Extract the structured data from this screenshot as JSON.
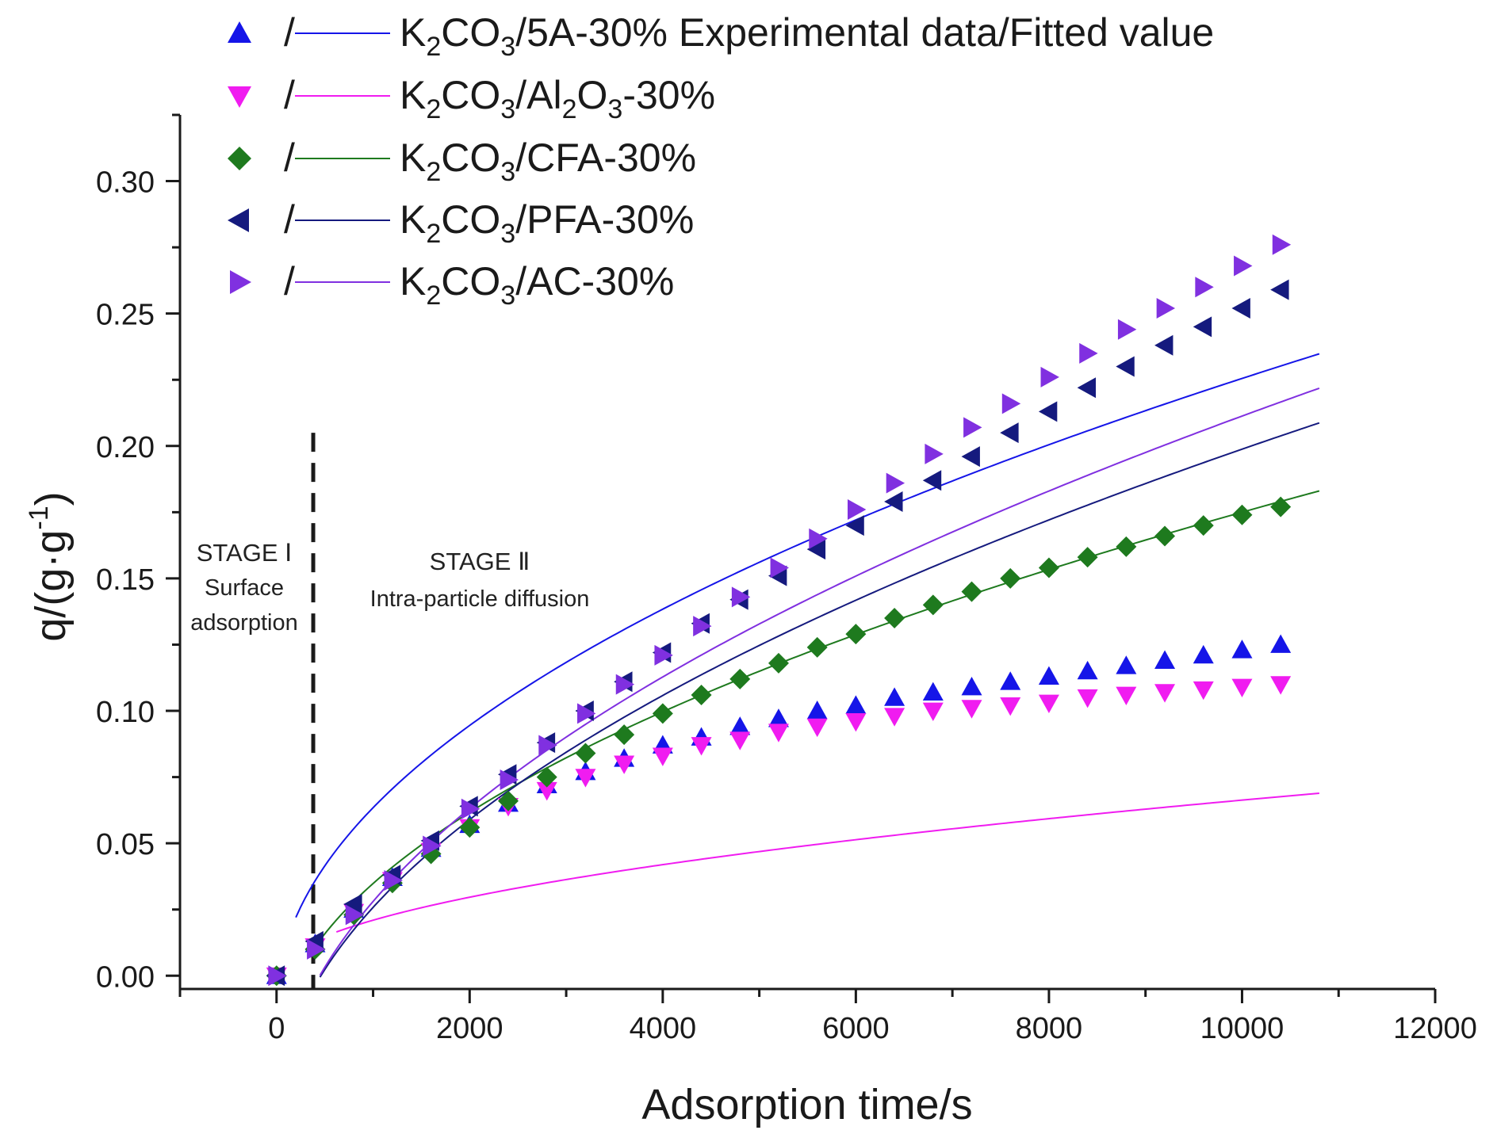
{
  "chart_data": {
    "type": "scatter",
    "title": "",
    "xlabel": "Adsorption time/s",
    "ylabel": {
      "base": "q/(g·g",
      "sup": "-1",
      "tail": ")"
    },
    "xlim": [
      -1000,
      12000
    ],
    "ylim": [
      -0.005,
      0.325
    ],
    "xticks": [
      0,
      2000,
      4000,
      6000,
      8000,
      10000,
      12000
    ],
    "xtick_labels": [
      "0",
      "2000",
      "4000",
      "6000",
      "8000",
      "10000",
      "12000"
    ],
    "yticks": [
      0.0,
      0.05,
      0.1,
      0.15,
      0.2,
      0.25,
      0.3
    ],
    "ytick_labels": [
      "0.00",
      "0.05",
      "0.10",
      "0.15",
      "0.20",
      "0.25",
      "0.30"
    ],
    "grid": false,
    "legend_position": "top-left",
    "legend_separator": "/",
    "stage_boundary_x": 380,
    "stage1": {
      "title": "STAGE Ⅰ",
      "line1": "Surface",
      "line2": "adsorption"
    },
    "stage2": {
      "title": "STAGE Ⅱ",
      "line1": "Intra-particle diffusion"
    },
    "x": [
      0,
      400,
      800,
      1200,
      1600,
      2000,
      2400,
      2800,
      3200,
      3600,
      4000,
      4400,
      4800,
      5200,
      5600,
      6000,
      6400,
      6800,
      7200,
      7600,
      8000,
      8400,
      8800,
      9200,
      9600,
      10000,
      10400
    ],
    "series": [
      {
        "label": {
          "k": "K",
          "k_sub": "2",
          "co": "CO",
          "co_sub": "3",
          "rest": "/5A-30% Experimental data/Fitted value"
        },
        "marker": "triangle-up",
        "color": "#1515e8",
        "values": [
          0,
          0.012,
          0.025,
          0.037,
          0.048,
          0.057,
          0.065,
          0.072,
          0.077,
          0.082,
          0.087,
          0.09,
          0.094,
          0.097,
          0.1,
          0.102,
          0.105,
          0.107,
          0.109,
          0.111,
          0.113,
          0.115,
          0.117,
          0.119,
          0.121,
          0.123,
          0.125
        ],
        "fit": {
          "x0": 200,
          "a": 0.00237,
          "b": -0.0115,
          "end": 10800
        }
      },
      {
        "label": {
          "k": "K",
          "k_sub": "2",
          "co": "CO",
          "co_sub": "3",
          "al_slash": "/Al",
          "al_sub": "2",
          "o": "O",
          "o_sub": "3",
          "rest": "-30%"
        },
        "marker": "triangle-down",
        "color": "#f01cf0",
        "values": [
          0,
          0.011,
          0.024,
          0.036,
          0.047,
          0.056,
          0.064,
          0.07,
          0.075,
          0.08,
          0.083,
          0.087,
          0.089,
          0.092,
          0.094,
          0.096,
          0.098,
          0.1,
          0.101,
          0.102,
          0.103,
          0.105,
          0.106,
          0.107,
          0.108,
          0.109,
          0.11
        ],
        "fit": {
          "x0": 620,
          "a": 0.000663,
          "b": 0.0,
          "end": 10800
        }
      },
      {
        "label": {
          "k": "K",
          "k_sub": "2",
          "co": "CO",
          "co_sub": "3",
          "rest": "/CFA-30%"
        },
        "marker": "diamond",
        "color": "#1e7a1e",
        "values": [
          0,
          0.01,
          0.023,
          0.035,
          0.046,
          0.056,
          0.066,
          0.075,
          0.084,
          0.091,
          0.099,
          0.106,
          0.112,
          0.118,
          0.124,
          0.129,
          0.135,
          0.14,
          0.145,
          0.15,
          0.154,
          0.158,
          0.162,
          0.166,
          0.17,
          0.174,
          0.177
        ],
        "fit": {
          "x0": 380,
          "a": 0.00205,
          "b": -0.03,
          "end": 10800
        }
      },
      {
        "label": {
          "k": "K",
          "k_sub": "2",
          "co": "CO",
          "co_sub": "3",
          "rest": "/PFA-30%"
        },
        "marker": "triangle-left",
        "color": "#151a7e",
        "values": [
          0,
          0.013,
          0.027,
          0.038,
          0.051,
          0.064,
          0.076,
          0.088,
          0.1,
          0.111,
          0.122,
          0.133,
          0.142,
          0.151,
          0.161,
          0.17,
          0.179,
          0.187,
          0.196,
          0.205,
          0.213,
          0.222,
          0.23,
          0.238,
          0.245,
          0.252,
          0.259
        ],
        "fit": {
          "x0": 450,
          "a": 0.00253,
          "b": -0.0542,
          "end": 10800
        }
      },
      {
        "label": {
          "k": "K",
          "k_sub": "2",
          "co": "CO",
          "co_sub": "3",
          "rest": "/AC-30%"
        },
        "marker": "triangle-right",
        "color": "#8030e0",
        "values": [
          0,
          0.01,
          0.023,
          0.036,
          0.049,
          0.063,
          0.074,
          0.087,
          0.099,
          0.11,
          0.121,
          0.132,
          0.143,
          0.154,
          0.165,
          0.176,
          0.186,
          0.197,
          0.207,
          0.216,
          0.226,
          0.235,
          0.244,
          0.252,
          0.26,
          0.268,
          0.276
        ],
        "fit": {
          "x0": 450,
          "a": 0.00268,
          "b": -0.0567,
          "end": 10800
        }
      }
    ]
  }
}
